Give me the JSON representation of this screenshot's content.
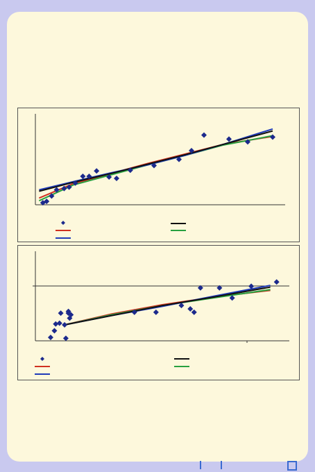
{
  "chart_data": [
    {
      "type": "scatter",
      "title": "",
      "xlabel": "",
      "ylabel": "",
      "xlim": [
        0,
        20
      ],
      "ylim": [
        0,
        20
      ],
      "grid": false,
      "legend_placement": "bottom",
      "points": {
        "color": "#1c2a8c",
        "x": [
          0.6,
          0.9,
          1.3,
          1.7,
          2.3,
          2.7,
          3.2,
          3.8,
          4.3,
          4.9,
          5.9,
          6.5,
          7.6,
          9.5,
          11.5,
          12.5,
          13.5,
          15.5,
          17.0,
          19.0
        ],
        "y": [
          0.3,
          0.5,
          1.3,
          2.2,
          2.4,
          2.6,
          3.2,
          4.2,
          4.2,
          5.0,
          4.1,
          3.9,
          5.1,
          5.8,
          6.7,
          8.0,
          10.3,
          9.7,
          9.3,
          10.0
        ]
      },
      "fits": [
        {
          "color": "#d03020",
          "x": [
            0.3,
            3,
            6,
            9,
            12,
            15,
            19
          ],
          "y": [
            1.0,
            3.1,
            4.6,
            6.1,
            7.5,
            8.9,
            10.1
          ]
        },
        {
          "color": "#27a040",
          "x": [
            0.3,
            3,
            6,
            9,
            12,
            15,
            19
          ],
          "y": [
            0.6,
            2.9,
            4.4,
            5.9,
            7.3,
            8.8,
            10.2
          ]
        },
        {
          "color": "#1e3ab8",
          "x": [
            0.3,
            3,
            6,
            9,
            12,
            15,
            19
          ],
          "y": [
            2.2,
            3.4,
            4.7,
            5.9,
            7.3,
            8.9,
            11.2
          ]
        },
        {
          "color": "#101010",
          "x": [
            0.3,
            3,
            6,
            9,
            12,
            15,
            19
          ],
          "y": [
            2.0,
            3.3,
            4.6,
            6.0,
            7.4,
            8.9,
            10.9
          ]
        }
      ]
    },
    {
      "type": "scatter",
      "title": "",
      "xlabel": "",
      "ylabel": "",
      "xlim": [
        0,
        20
      ],
      "ylim": [
        0,
        20
      ],
      "grid": false,
      "legend_placement": "bottom",
      "points": {
        "color": "#1c2a8c",
        "x": [
          1.2,
          1.5,
          1.6,
          1.9,
          2.0,
          2.3,
          2.4,
          2.6,
          2.6,
          2.7,
          2.8,
          7.8,
          9.5,
          11.5,
          12.2,
          12.5,
          13.0,
          14.5,
          15.5,
          17.0,
          19.0
        ],
        "y": [
          0.4,
          1.2,
          2.0,
          2.1,
          3.3,
          1.9,
          0.3,
          3.5,
          3.3,
          2.7,
          3.1,
          3.4,
          3.4,
          4.2,
          3.8,
          3.4,
          6.3,
          6.3,
          5.1,
          6.5,
          7.0
        ]
      },
      "fits": [
        {
          "color": "#d03020",
          "x": [
            2.3,
            6,
            10,
            14,
            18.5
          ],
          "y": [
            1.9,
            3.2,
            4.3,
            5.2,
            6.0
          ]
        },
        {
          "color": "#27a040",
          "x": [
            2.3,
            6,
            10,
            14,
            18.5
          ],
          "y": [
            1.9,
            3.1,
            4.2,
            5.1,
            6.1
          ]
        },
        {
          "color": "#1e3ab8",
          "x": [
            2.3,
            6,
            10,
            14,
            18.5
          ],
          "y": [
            1.9,
            3.0,
            4.1,
            5.3,
            6.6
          ]
        },
        {
          "color": "#101010",
          "x": [
            2.3,
            6,
            10,
            14,
            18.5
          ],
          "y": [
            1.9,
            3.0,
            4.2,
            5.2,
            6.4
          ]
        }
      ]
    }
  ],
  "nav": {
    "accent": "#3a6ad0"
  }
}
